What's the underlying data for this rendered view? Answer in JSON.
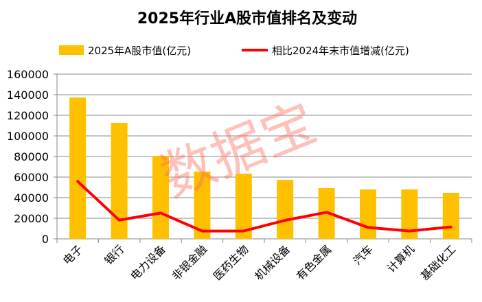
{
  "chart_data": {
    "type": "bar+line",
    "title": "2025年行业A股市值排名及变动",
    "categories": [
      "电子",
      "银行",
      "电力设备",
      "非银金融",
      "医药生物",
      "机械设备",
      "有色金属",
      "汽车",
      "计算机",
      "基础化工"
    ],
    "series": [
      {
        "name": "2025年A股市值(亿元)",
        "type": "bar",
        "color": "#FFC000",
        "values": [
          137300,
          112700,
          80700,
          65300,
          63300,
          57300,
          49300,
          48000,
          48000,
          44700
        ]
      },
      {
        "name": "相比2024年末市值增减(亿元)",
        "type": "line",
        "color": "#FF0000",
        "values": [
          55800,
          18200,
          25100,
          7600,
          7600,
          18000,
          25800,
          11100,
          7600,
          11600
        ]
      }
    ],
    "ylim": [
      0,
      160000
    ],
    "yticks": [
      "0",
      "20000",
      "40000",
      "60000",
      "80000",
      "100000",
      "120000",
      "140000",
      "160000"
    ],
    "grid": true,
    "legend": "top",
    "watermark": "数据宝"
  }
}
